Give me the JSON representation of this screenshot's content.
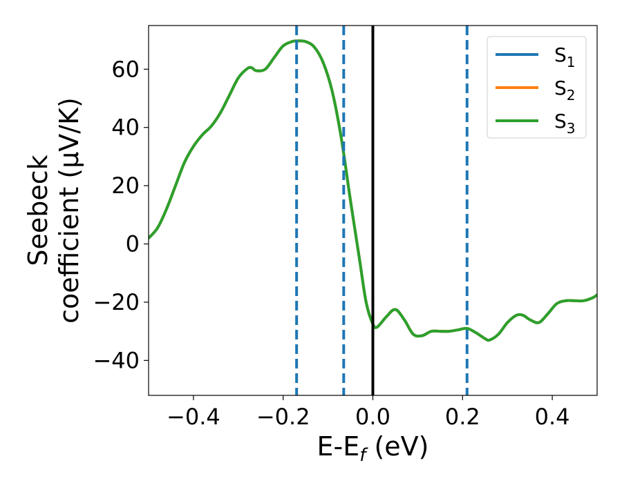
{
  "chart_data": {
    "type": "line",
    "xlabel_parts": [
      "E-E",
      "f",
      " (eV)"
    ],
    "ylabel_lines": [
      "Seebeck",
      "coefficient  (μV/K)"
    ],
    "xlim": [
      -0.5,
      0.5
    ],
    "ylim": [
      -52,
      75
    ],
    "xticks": [
      -0.4,
      -0.2,
      0.0,
      0.2,
      0.4
    ],
    "xtick_labels": [
      "−0.4",
      "−0.2",
      "0.0",
      "0.2",
      "0.4"
    ],
    "yticks": [
      -40,
      -20,
      0,
      20,
      40,
      60
    ],
    "ytick_labels": [
      "−40",
      "−20",
      "0",
      "20",
      "40",
      "60"
    ],
    "grid": false,
    "legend_position": "top-right",
    "vlines": [
      {
        "x": -0.17,
        "style": "dashed",
        "color": "#1f77b4"
      },
      {
        "x": -0.065,
        "style": "dashed",
        "color": "#1f77b4"
      },
      {
        "x": 0.0,
        "style": "solid",
        "color": "#000000"
      },
      {
        "x": 0.21,
        "style": "dashed",
        "color": "#1f77b4"
      }
    ],
    "series": [
      {
        "name_base": "S",
        "name_sub": "1",
        "color": "#1f77b4",
        "x": [
          -0.5,
          -0.48,
          -0.46,
          -0.44,
          -0.42,
          -0.4,
          -0.38,
          -0.36,
          -0.34,
          -0.32,
          -0.3,
          -0.28,
          -0.27,
          -0.26,
          -0.24,
          -0.22,
          -0.2,
          -0.18,
          -0.17,
          -0.15,
          -0.13,
          -0.11,
          -0.09,
          -0.07,
          -0.05,
          -0.03,
          -0.015,
          0.0,
          0.01,
          0.03,
          0.05,
          0.07,
          0.09,
          0.11,
          0.13,
          0.15,
          0.17,
          0.19,
          0.21,
          0.23,
          0.25,
          0.26,
          0.28,
          0.3,
          0.32,
          0.335,
          0.35,
          0.37,
          0.39,
          0.41,
          0.43,
          0.45,
          0.47,
          0.49,
          0.5
        ],
        "y": [
          2,
          5.5,
          12,
          20,
          28,
          33.5,
          37.5,
          40.5,
          45,
          51,
          57,
          60.2,
          60.5,
          59.5,
          60,
          64,
          68,
          69.5,
          69.7,
          69.5,
          67.5,
          62,
          52,
          36,
          15,
          -5,
          -20,
          -27.5,
          -28.5,
          -25,
          -22.5,
          -26,
          -31,
          -31.5,
          -30,
          -30,
          -30,
          -29.5,
          -29,
          -30.5,
          -32.5,
          -33,
          -31,
          -27,
          -24.5,
          -24.5,
          -26,
          -27,
          -24,
          -20.5,
          -19.5,
          -19.5,
          -19.5,
          -18.5,
          -17.5
        ]
      },
      {
        "name_base": "S",
        "name_sub": "2",
        "color": "#ff7f0e",
        "x": [
          -0.5,
          -0.48,
          -0.46,
          -0.44,
          -0.42,
          -0.4,
          -0.38,
          -0.36,
          -0.34,
          -0.32,
          -0.3,
          -0.28,
          -0.27,
          -0.26,
          -0.24,
          -0.22,
          -0.2,
          -0.18,
          -0.17,
          -0.15,
          -0.13,
          -0.11,
          -0.09,
          -0.07,
          -0.05,
          -0.03,
          -0.015,
          0.0,
          0.01,
          0.03,
          0.05,
          0.07,
          0.09,
          0.11,
          0.13,
          0.15,
          0.17,
          0.19,
          0.21,
          0.23,
          0.25,
          0.26,
          0.28,
          0.3,
          0.32,
          0.335,
          0.35,
          0.37,
          0.39,
          0.41,
          0.43,
          0.45,
          0.47,
          0.49,
          0.5
        ],
        "y": [
          2,
          5.5,
          12,
          20,
          28,
          33.5,
          37.5,
          40.5,
          45,
          51,
          57,
          60.2,
          60.5,
          59.5,
          60,
          64,
          68,
          69.5,
          69.7,
          69.5,
          67.5,
          62,
          52,
          36,
          15,
          -5,
          -20,
          -27.5,
          -28.5,
          -25,
          -22.5,
          -26,
          -31,
          -31.5,
          -30,
          -30,
          -30,
          -29.5,
          -29,
          -30.5,
          -32.5,
          -33,
          -31,
          -27,
          -24.5,
          -24.5,
          -26,
          -27,
          -24,
          -20.5,
          -19.5,
          -19.5,
          -19.5,
          -18.5,
          -17.5
        ]
      },
      {
        "name_base": "S",
        "name_sub": "3",
        "color": "#2ca02c",
        "x": [
          -0.5,
          -0.48,
          -0.46,
          -0.44,
          -0.42,
          -0.4,
          -0.38,
          -0.36,
          -0.34,
          -0.32,
          -0.3,
          -0.28,
          -0.27,
          -0.26,
          -0.24,
          -0.22,
          -0.2,
          -0.18,
          -0.17,
          -0.15,
          -0.13,
          -0.11,
          -0.09,
          -0.07,
          -0.05,
          -0.03,
          -0.015,
          0.0,
          0.01,
          0.03,
          0.05,
          0.07,
          0.09,
          0.11,
          0.13,
          0.15,
          0.17,
          0.19,
          0.21,
          0.23,
          0.25,
          0.26,
          0.28,
          0.3,
          0.32,
          0.335,
          0.35,
          0.37,
          0.39,
          0.41,
          0.43,
          0.45,
          0.47,
          0.49,
          0.5
        ],
        "y": [
          2,
          5.5,
          12,
          20,
          28,
          33.5,
          37.5,
          40.5,
          45,
          51,
          57,
          60.2,
          60.5,
          59.5,
          60,
          64,
          68,
          69.5,
          69.7,
          69.5,
          67.5,
          62,
          52,
          36,
          15,
          -5,
          -20,
          -27.5,
          -28.5,
          -25,
          -22.5,
          -26,
          -31,
          -31.5,
          -30,
          -30,
          -30,
          -29.5,
          -29,
          -30.5,
          -32.5,
          -33,
          -31,
          -27,
          -24.5,
          -24.5,
          -26,
          -27,
          -24,
          -20.5,
          -19.5,
          -19.5,
          -19.5,
          -18.5,
          -17.5
        ]
      }
    ]
  }
}
